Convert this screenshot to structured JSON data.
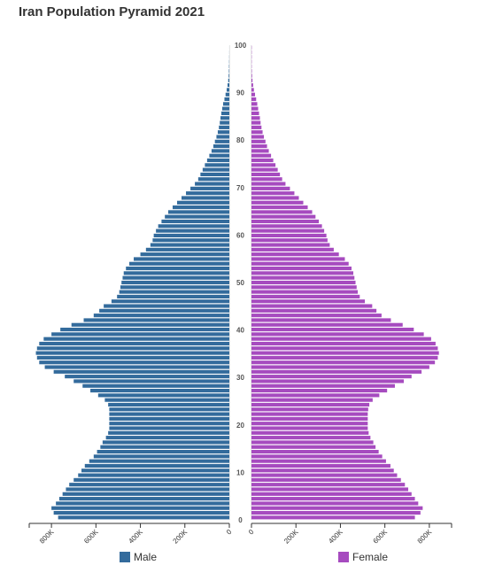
{
  "chart_data": {
    "type": "bar",
    "title": "Iran Population Pyramid 2021",
    "orientation": "horizontal-pyramid",
    "age_axis": {
      "min": 0,
      "max": 100,
      "ticks": [
        0,
        10,
        20,
        30,
        40,
        50,
        60,
        70,
        80,
        90,
        100
      ]
    },
    "value_axis": {
      "max": 900000,
      "ticks": [
        0,
        200000,
        400000,
        600000,
        800000
      ],
      "tick_labels": [
        "0",
        "200K",
        "400K",
        "600K",
        "800K"
      ]
    },
    "categories": [
      0,
      1,
      2,
      3,
      4,
      5,
      6,
      7,
      8,
      9,
      10,
      11,
      12,
      13,
      14,
      15,
      16,
      17,
      18,
      19,
      20,
      21,
      22,
      23,
      24,
      25,
      26,
      27,
      28,
      29,
      30,
      31,
      32,
      33,
      34,
      35,
      36,
      37,
      38,
      39,
      40,
      41,
      42,
      43,
      44,
      45,
      46,
      47,
      48,
      49,
      50,
      51,
      52,
      53,
      54,
      55,
      56,
      57,
      58,
      59,
      60,
      61,
      62,
      63,
      64,
      65,
      66,
      67,
      68,
      69,
      70,
      71,
      72,
      73,
      74,
      75,
      76,
      77,
      78,
      79,
      80,
      81,
      82,
      83,
      84,
      85,
      86,
      87,
      88,
      89,
      90,
      91,
      92,
      93,
      94,
      95,
      96,
      97,
      98,
      99,
      100
    ],
    "series": [
      {
        "name": "Male",
        "color": "#336b9c",
        "values": [
          770000,
          790000,
          800000,
          780000,
          765000,
          750000,
          735000,
          720000,
          700000,
          680000,
          665000,
          650000,
          630000,
          610000,
          595000,
          580000,
          570000,
          555000,
          545000,
          540000,
          540000,
          540000,
          540000,
          540000,
          545000,
          560000,
          590000,
          625000,
          660000,
          700000,
          740000,
          790000,
          830000,
          855000,
          865000,
          870000,
          865000,
          855000,
          835000,
          800000,
          760000,
          710000,
          655000,
          610000,
          585000,
          565000,
          530000,
          505000,
          495000,
          490000,
          485000,
          480000,
          475000,
          465000,
          450000,
          430000,
          400000,
          375000,
          355000,
          345000,
          340000,
          330000,
          320000,
          305000,
          290000,
          275000,
          255000,
          235000,
          215000,
          195000,
          175000,
          155000,
          140000,
          130000,
          120000,
          110000,
          100000,
          90000,
          80000,
          72000,
          65000,
          58000,
          52000,
          47000,
          43000,
          40000,
          36000,
          32000,
          28000,
          22000,
          17000,
          12000,
          8000,
          5000,
          3000,
          2000,
          1500,
          1000,
          600,
          300,
          150
        ]
      },
      {
        "name": "Female",
        "color": "#a64bbf",
        "values": [
          735000,
          760000,
          770000,
          750000,
          735000,
          720000,
          705000,
          690000,
          672000,
          655000,
          640000,
          625000,
          605000,
          588000,
          572000,
          558000,
          548000,
          535000,
          527000,
          523000,
          523000,
          523000,
          523000,
          525000,
          530000,
          545000,
          575000,
          610000,
          645000,
          685000,
          720000,
          765000,
          800000,
          825000,
          838000,
          843000,
          838000,
          828000,
          808000,
          775000,
          730000,
          680000,
          627000,
          585000,
          562000,
          543000,
          510000,
          487000,
          478000,
          473000,
          468000,
          463000,
          458000,
          450000,
          437000,
          420000,
          393000,
          370000,
          352000,
          342000,
          337000,
          327000,
          317000,
          303000,
          288000,
          273000,
          253000,
          233000,
          213000,
          193000,
          173000,
          153000,
          138000,
          128000,
          118000,
          108000,
          98000,
          88000,
          78000,
          70000,
          63000,
          56000,
          50000,
          45000,
          41000,
          38000,
          34000,
          30000,
          26000,
          21000,
          16000,
          11000,
          7500,
          4500,
          2800,
          1800,
          1200,
          800,
          500,
          250,
          120
        ]
      }
    ],
    "legend": [
      "Male",
      "Female"
    ],
    "legend_position": "bottom"
  }
}
